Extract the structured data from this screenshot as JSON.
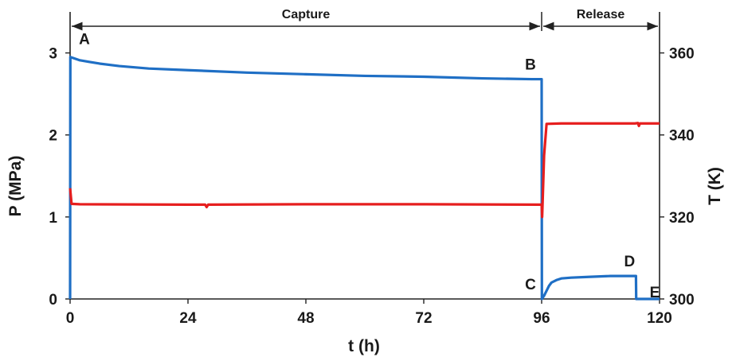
{
  "chart_data": {
    "type": "line",
    "xlabel": "t (h)",
    "ylabel_left": "P (MPa)",
    "ylabel_right": "T (K)",
    "xlim": [
      0,
      120
    ],
    "ylim_left": [
      0,
      3.5
    ],
    "ylim_right": [
      300,
      370
    ],
    "x_ticks": [
      0,
      24,
      48,
      72,
      96,
      120
    ],
    "y_left_ticks": [
      0,
      1,
      2,
      3
    ],
    "y_right_ticks": [
      300,
      320,
      340,
      360
    ],
    "grid": false,
    "phases": [
      {
        "label": "Capture",
        "x_start": 0,
        "x_end": 96
      },
      {
        "label": "Release",
        "x_start": 96,
        "x_end": 120
      }
    ],
    "series": [
      {
        "axis": "left",
        "color": "#1f6fc5",
        "points": [
          [
            0,
            0
          ],
          [
            0.05,
            2.95
          ],
          [
            1,
            2.93
          ],
          [
            2,
            2.91
          ],
          [
            4,
            2.89
          ],
          [
            6,
            2.87
          ],
          [
            10,
            2.84
          ],
          [
            16,
            2.81
          ],
          [
            24,
            2.79
          ],
          [
            36,
            2.76
          ],
          [
            48,
            2.74
          ],
          [
            60,
            2.72
          ],
          [
            72,
            2.71
          ],
          [
            84,
            2.69
          ],
          [
            94,
            2.68
          ],
          [
            96,
            2.68
          ],
          [
            96.05,
            0.0
          ],
          [
            96.5,
            0.04
          ],
          [
            97,
            0.1
          ],
          [
            97.5,
            0.16
          ],
          [
            98,
            0.2
          ],
          [
            99,
            0.23
          ],
          [
            100,
            0.25
          ],
          [
            102,
            0.26
          ],
          [
            106,
            0.27
          ],
          [
            110,
            0.28
          ],
          [
            115.2,
            0.28
          ],
          [
            115.25,
            0.0
          ],
          [
            116,
            0.0
          ],
          [
            118,
            0.0
          ],
          [
            120,
            0.0
          ]
        ]
      },
      {
        "axis": "right",
        "color": "#e61e1e",
        "points": [
          [
            0,
            327
          ],
          [
            0.3,
            323.2
          ],
          [
            2,
            323.1
          ],
          [
            24,
            323
          ],
          [
            27.5,
            323
          ],
          [
            27.8,
            322.4
          ],
          [
            28.1,
            323
          ],
          [
            48,
            323.1
          ],
          [
            72,
            323.1
          ],
          [
            95.5,
            323
          ],
          [
            96,
            323
          ],
          [
            96.1,
            320
          ],
          [
            96.5,
            335
          ],
          [
            97,
            342.7
          ],
          [
            100,
            342.8
          ],
          [
            110,
            342.8
          ],
          [
            115,
            342.8
          ],
          [
            115.6,
            342.9
          ],
          [
            115.8,
            342.2
          ],
          [
            116,
            342.8
          ],
          [
            120,
            342.8
          ]
        ]
      }
    ],
    "annotations": [
      {
        "label": "A",
        "x": 0,
        "y": 2.95,
        "axis": "left"
      },
      {
        "label": "B",
        "x": 96,
        "y": 2.68,
        "axis": "left"
      },
      {
        "label": "C",
        "x": 96,
        "y": 0.0,
        "axis": "left"
      },
      {
        "label": "D",
        "x": 115.2,
        "y": 0.28,
        "axis": "left"
      },
      {
        "label": "E",
        "x": 120,
        "y": 0.0,
        "axis": "left"
      }
    ]
  }
}
